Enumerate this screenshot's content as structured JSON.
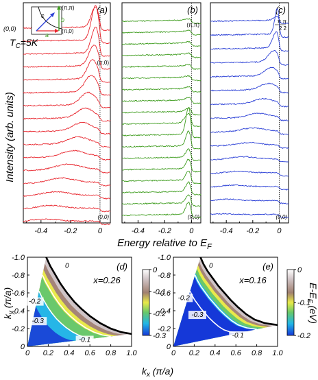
{
  "figure": {
    "ylabel_top": "Intensity (arb. units)",
    "xlabel_top": "Energy relative to E",
    "xlabel_top_sub": "F",
    "tc_label": "T",
    "tc_sub": "C",
    "tc_value": "=5K",
    "inset": {
      "label_00": "(0,0)",
      "label_pi0": "(π,0)",
      "label_pipi": "(π,π)",
      "label_a": "a",
      "label_b": "b",
      "label_c": "c"
    },
    "map_ylabel": "k",
    "map_ylabel_sub": "y",
    "map_ylabel_unit": " (π/a)",
    "map_xlabel": "k",
    "map_xlabel_sub": "x",
    "map_xlabel_unit": " (π/a)",
    "colorbar_label": "E-E",
    "colorbar_label_sub": "F",
    "colorbar_label_unit": " (eV)"
  },
  "chart_data": [
    {
      "type": "line",
      "panel": "(a)",
      "x_ticks": [
        "-0.4",
        "-0.2",
        "0"
      ],
      "xlim": [
        -0.52,
        0.07
      ],
      "top_label": "",
      "mid_label": "(π,0)",
      "bottom_label": "(0,0)",
      "color": "#e8242c",
      "series": [
        {
          "peak_energy": -0.03,
          "peak_height": 30,
          "width": 0.04
        },
        {
          "peak_energy": -0.03,
          "peak_height": 50,
          "width": 0.04
        },
        {
          "peak_energy": -0.03,
          "peak_height": 38,
          "width": 0.04
        },
        {
          "peak_energy": -0.04,
          "peak_height": 30,
          "width": 0.05
        },
        {
          "peak_energy": -0.05,
          "peak_height": 28,
          "width": 0.05
        },
        {
          "peak_energy": -0.06,
          "peak_height": 24,
          "width": 0.06
        },
        {
          "peak_energy": -0.08,
          "peak_height": 18,
          "width": 0.07
        },
        {
          "peak_energy": -0.1,
          "peak_height": 14,
          "width": 0.08
        },
        {
          "peak_energy": -0.12,
          "peak_height": 12,
          "width": 0.09
        },
        {
          "peak_energy": -0.15,
          "peak_height": 10,
          "width": 0.1
        },
        {
          "peak_energy": -0.18,
          "peak_height": 9,
          "width": 0.11
        },
        {
          "peak_energy": -0.22,
          "peak_height": 8,
          "width": 0.12
        },
        {
          "peak_energy": -0.26,
          "peak_height": 7,
          "width": 0.12
        },
        {
          "peak_energy": -0.3,
          "peak_height": 6,
          "width": 0.13
        },
        {
          "peak_energy": -0.34,
          "peak_height": 5,
          "width": 0.13
        },
        {
          "peak_energy": -0.38,
          "peak_height": 4,
          "width": 0.14
        }
      ]
    },
    {
      "type": "line",
      "panel": "(b)",
      "x_ticks": [
        "-0.4",
        "-0.2",
        "0"
      ],
      "xlim": [
        -0.52,
        0.07
      ],
      "top_label": "(π,π)",
      "mid_label": "",
      "bottom_label": "(π,0)",
      "color": "#3e9c1e",
      "series": [
        {
          "peak_energy": -0.01,
          "peak_height": 2,
          "width": 0.05
        },
        {
          "peak_energy": -0.01,
          "peak_height": 2,
          "width": 0.05
        },
        {
          "peak_energy": -0.01,
          "peak_height": 2,
          "width": 0.05
        },
        {
          "peak_energy": -0.01,
          "peak_height": 2,
          "width": 0.05
        },
        {
          "peak_energy": -0.01,
          "peak_height": 2,
          "width": 0.05
        },
        {
          "peak_energy": -0.01,
          "peak_height": 2,
          "width": 0.05
        },
        {
          "peak_energy": -0.01,
          "peak_height": 3,
          "width": 0.05
        },
        {
          "peak_energy": -0.01,
          "peak_height": 4,
          "width": 0.05
        },
        {
          "peak_energy": -0.01,
          "peak_height": 6,
          "width": 0.04
        },
        {
          "peak_energy": -0.02,
          "peak_height": 14,
          "width": 0.04
        },
        {
          "peak_energy": -0.02,
          "peak_height": 40,
          "width": 0.03
        },
        {
          "peak_energy": -0.02,
          "peak_height": 22,
          "width": 0.03
        },
        {
          "peak_energy": -0.02,
          "peak_height": 12,
          "width": 0.03
        },
        {
          "peak_energy": -0.02,
          "peak_height": 14,
          "width": 0.03
        },
        {
          "peak_energy": -0.02,
          "peak_height": 14,
          "width": 0.03
        },
        {
          "peak_energy": -0.02,
          "peak_height": 14,
          "width": 0.03
        },
        {
          "peak_energy": -0.02,
          "peak_height": 12,
          "width": 0.03
        },
        {
          "peak_energy": -0.02,
          "peak_height": 18,
          "width": 0.03
        }
      ]
    },
    {
      "type": "line",
      "panel": "(c)",
      "x_ticks": [
        "-0.4",
        "-0.2",
        "0"
      ],
      "xlim": [
        -0.52,
        0.07
      ],
      "top_label": "(π/2,π/2)",
      "top_label_num": "π  π",
      "top_label_den": "2  2",
      "mid_label": "",
      "bottom_label": "(0,0)",
      "color": "#2a3fd6",
      "series": [
        {
          "peak_energy": -0.01,
          "peak_height": 6,
          "width": 0.04
        },
        {
          "peak_energy": -0.01,
          "peak_height": 42,
          "width": 0.03
        },
        {
          "peak_energy": -0.02,
          "peak_height": 24,
          "width": 0.04
        },
        {
          "peak_energy": -0.04,
          "peak_height": 16,
          "width": 0.06
        },
        {
          "peak_energy": -0.06,
          "peak_height": 12,
          "width": 0.07
        },
        {
          "peak_energy": -0.08,
          "peak_height": 9,
          "width": 0.09
        },
        {
          "peak_energy": -0.12,
          "peak_height": 7,
          "width": 0.1
        },
        {
          "peak_energy": -0.16,
          "peak_height": 6,
          "width": 0.11
        },
        {
          "peak_energy": -0.2,
          "peak_height": 5,
          "width": 0.12
        },
        {
          "peak_energy": -0.24,
          "peak_height": 4,
          "width": 0.12
        },
        {
          "peak_energy": -0.28,
          "peak_height": 4,
          "width": 0.13
        },
        {
          "peak_energy": -0.32,
          "peak_height": 3,
          "width": 0.13
        },
        {
          "peak_energy": -0.36,
          "peak_height": 3,
          "width": 0.14
        },
        {
          "peak_energy": -0.4,
          "peak_height": 3,
          "width": 0.14
        },
        {
          "peak_energy": -0.44,
          "peak_height": 2,
          "width": 0.14
        }
      ]
    },
    {
      "type": "heatmap",
      "panel": "(d)",
      "doping": "x=0.26",
      "xlim": [
        0,
        1.0
      ],
      "ylim": [
        -1.0,
        0
      ],
      "x_ticks": [
        "0",
        "0.2",
        "0.4",
        "0.6",
        "0.8",
        "1.0"
      ],
      "y_ticks": [
        "-1.0",
        "-0.8",
        "-0.6",
        "-0.4",
        "-0.2",
        "0"
      ],
      "contour_labels": [
        {
          "text": "0",
          "kx": 0.38,
          "ky": -0.88
        },
        {
          "text": "-0.2",
          "kx": 0.07,
          "ky": -0.48
        },
        {
          "text": "-0.3",
          "kx": 0.1,
          "ky": -0.26
        },
        {
          "text": "-0.1",
          "kx": 0.55,
          "ky": -0.05
        }
      ],
      "colorbar": {
        "min": -0.3,
        "max": 0,
        "ticks": [
          "0",
          "-0.1",
          "-0.2",
          "-0.3"
        ]
      },
      "fermi_surface_kx": [
        0.18,
        0.22,
        0.27,
        0.32,
        0.38,
        0.45,
        0.52,
        0.6,
        0.7,
        0.8,
        0.9,
        1.0
      ],
      "fermi_surface_ky": [
        -1.0,
        -0.9,
        -0.8,
        -0.7,
        -0.6,
        -0.5,
        -0.42,
        -0.34,
        -0.26,
        -0.2,
        -0.16,
        -0.14
      ]
    },
    {
      "type": "heatmap",
      "panel": "(e)",
      "doping": "x=0.16",
      "xlim": [
        0,
        1.0
      ],
      "ylim": [
        -1.0,
        0
      ],
      "x_ticks": [
        "0",
        "0.2",
        "0.4",
        "0.6",
        "0.8",
        "1.0"
      ],
      "y_ticks": [
        "-1.0",
        "-0.8",
        "-0.6",
        "-0.4",
        "-0.2",
        "0"
      ],
      "contour_labels": [
        {
          "text": "0",
          "kx": 0.36,
          "ky": -0.88
        },
        {
          "text": "-0.2",
          "kx": 0.1,
          "ky": -0.52
        },
        {
          "text": "-0.3",
          "kx": 0.23,
          "ky": -0.33
        },
        {
          "text": "-0.1",
          "kx": 0.62,
          "ky": -0.1
        }
      ],
      "colorbar": {
        "min": -0.2,
        "max": 0,
        "ticks": [
          "0",
          "-0.1",
          "-0.2"
        ]
      },
      "fermi_surface_kx": [
        0.26,
        0.29,
        0.33,
        0.38,
        0.43,
        0.49,
        0.55,
        0.62,
        0.7,
        0.78,
        0.88,
        1.0
      ],
      "fermi_surface_ky": [
        -1.0,
        -0.92,
        -0.84,
        -0.76,
        -0.68,
        -0.6,
        -0.52,
        -0.44,
        -0.36,
        -0.3,
        -0.26,
        -0.24
      ]
    }
  ]
}
